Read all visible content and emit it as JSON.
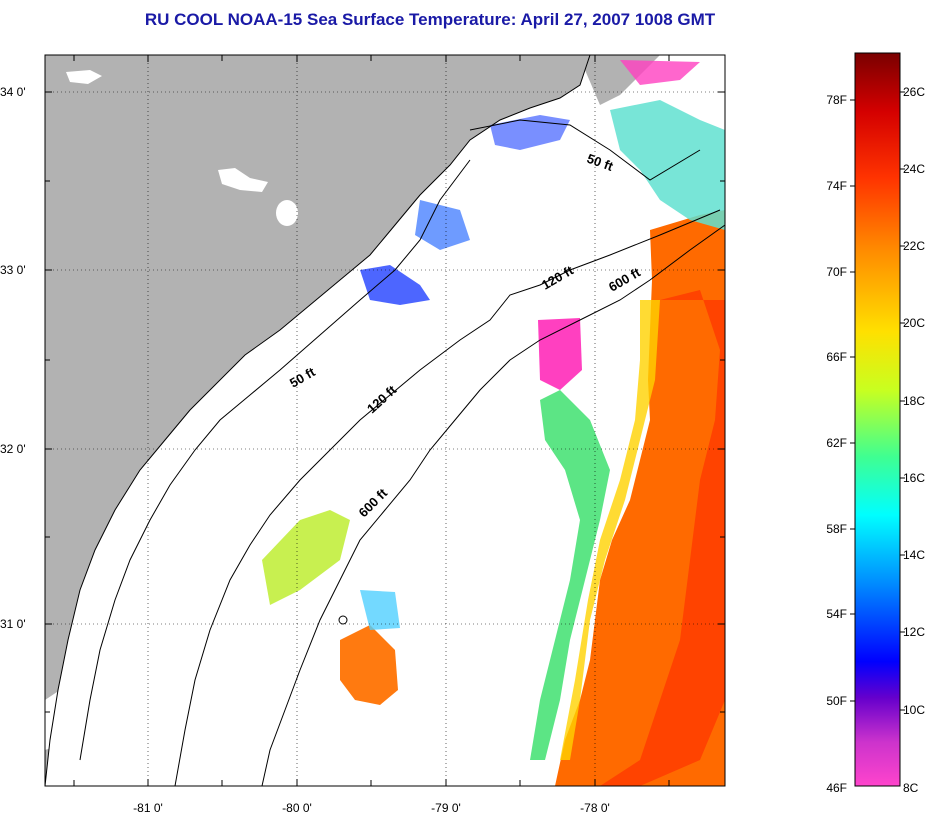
{
  "title": "RU COOL  NOAA-15  Sea Surface Temperature:  April 27, 2007 1008 GMT",
  "map": {
    "lat_ticks": [
      "34 0'",
      "33 0'",
      "32 0'",
      "31 0'"
    ],
    "lon_ticks": [
      "-81 0'",
      "-80 0'",
      "-79 0'",
      "-78 0'"
    ],
    "contour_labels": [
      "50 ft",
      "120 ft",
      "600 ft",
      "50 ft",
      "120 ft",
      "600 ft"
    ],
    "land_color": "#b2b2b2",
    "cloud_color": "#ffffff"
  },
  "colorbar": {
    "fahrenheit_labels": [
      "78F",
      "74F",
      "70F",
      "66F",
      "62F",
      "58F",
      "54F",
      "50F",
      "46F"
    ],
    "celsius_labels": [
      "26C",
      "24C",
      "22C",
      "20C",
      "18C",
      "16C",
      "14C",
      "12C",
      "10C",
      "8C"
    ],
    "colors_top_to_bottom": [
      "#8b0000",
      "#ff0000",
      "#ff8000",
      "#ffff00",
      "#80ff40",
      "#00ffff",
      "#0080ff",
      "#0000ff",
      "#8000ff",
      "#ff33cc"
    ]
  }
}
